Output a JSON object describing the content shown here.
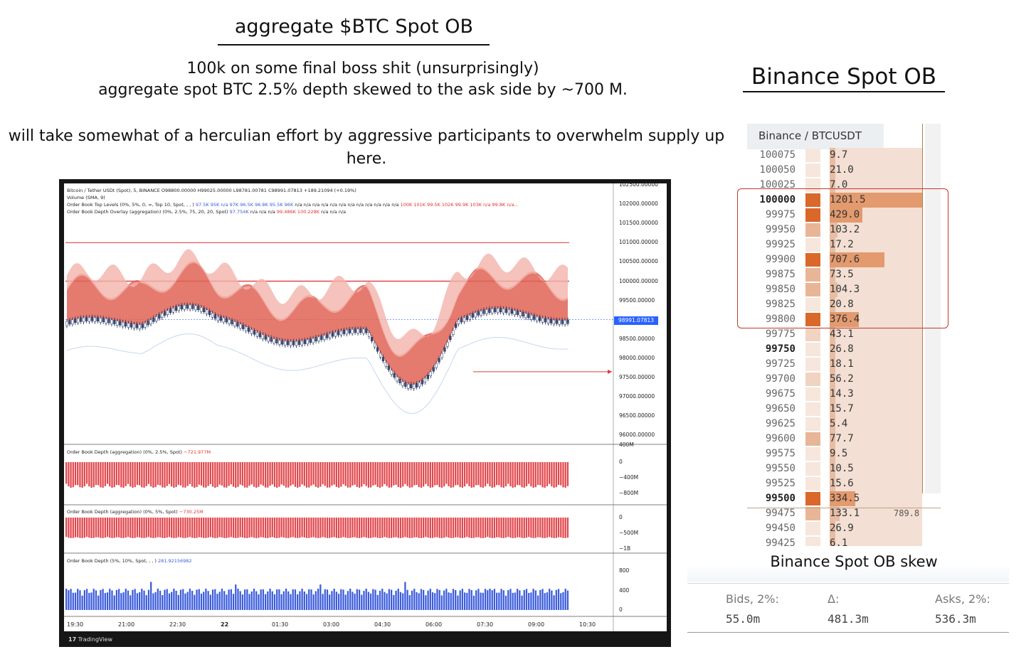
{
  "annotations": {
    "main_title": "aggregate $BTC Spot OB",
    "note_line_1": "100k on some final boss shit (unsurprisingly)",
    "note_line_2": "aggregate spot BTC 2.5% depth skewed to the ask side by ~700 M.",
    "note_line_3": "will take somewhat of a herculian effort by aggressive participants to overwhelm supply up here.",
    "right_title": "Binance Spot OB",
    "skew_title": "Binance Spot OB skew"
  },
  "chart": {
    "legend": {
      "symbol_line": "Bitcoin / Tether USDt (Spot), 5, BINANCE  O98800.00000  H99025.00000  L98781.00781  C98991.07813  +189.21094 (+0.19%)",
      "volume_line": "Volume (SMA, 9)",
      "top_levels_prefix": "Order Book Top Levels (0%, 5%, 0, ∞, Top 10, Spot, , , )",
      "top_levels_blue": "97.5K  95K  n/a  97K  96.5K  96.8K  95.5K  96K",
      "top_levels_na": "n/a  n/a  n/a  n/a  n/a  n/a  n/a  n/a  n/a  n/a  n/a  n/a",
      "top_levels_red": "100K  101K  99.5K  102K  99.9K  103K  n/a  99.8K  n/a...",
      "overlay_prefix": "Order Book Depth Overlay (aggregation) (0%, 2.5%, 75, 20, 20, Spot)",
      "overlay_blue": "97.754K",
      "overlay_na": "n/a  n/a  n/a",
      "overlay_red": "99.486K  100.228K",
      "overlay_tail": "n/a  n/a  n/a"
    },
    "price_axis": [
      "102500.00000",
      "102000.00000",
      "101500.00000",
      "101000.00000",
      "100500.00000",
      "100000.00000",
      "99500.00000",
      "99000.00000",
      "98500.00000",
      "98000.00000",
      "97500.00000",
      "97000.00000",
      "96500.00000",
      "96000.00000"
    ],
    "price_tag": "98991.07813",
    "panel1": {
      "label": "Order Book Depth (aggregation) (0%, 2.5%, Spot)",
      "value": "−721.977M",
      "ticks": [
        "400M",
        "0",
        "−400M",
        "−800M"
      ]
    },
    "panel2": {
      "label": "Order Book Depth (aggregation) (0%, 5%, Spot)",
      "value": "−730.25M",
      "ticks": [
        "0",
        "−500M",
        "−1B"
      ]
    },
    "panel3": {
      "label": "Order Book Depth (5%, 10%, Spot, , , )",
      "value": "281.92156982",
      "ticks": [
        "800",
        "400",
        "0"
      ]
    },
    "time_axis": [
      "19:30",
      "21:00",
      "22:30",
      "22",
      "01:30",
      "03:00",
      "04:30",
      "06:00",
      "07:30",
      "09:00",
      "10:30"
    ],
    "footer": "TradingView",
    "colors": {
      "candle_up": "#1f3a7a",
      "candle_down": "#3d4c80",
      "ask_band": "#e06355",
      "depth_bar": "#e0474c",
      "vol_bar": "#3b5bdb"
    }
  },
  "order_book": {
    "header": "Binance / BTCUSDT",
    "rows": [
      {
        "price": "100075",
        "size": "9.7",
        "bold": false
      },
      {
        "price": "100050",
        "size": "21.0",
        "bold": false
      },
      {
        "price": "100025",
        "size": "7.0",
        "bold": false
      },
      {
        "price": "100000",
        "size": "1201.5",
        "bold": true
      },
      {
        "price": "99975",
        "size": "429.0",
        "bold": false
      },
      {
        "price": "99950",
        "size": "103.2",
        "bold": false
      },
      {
        "price": "99925",
        "size": "17.2",
        "bold": false
      },
      {
        "price": "99900",
        "size": "707.6",
        "bold": false
      },
      {
        "price": "99875",
        "size": "73.5",
        "bold": false
      },
      {
        "price": "99850",
        "size": "104.3",
        "bold": false
      },
      {
        "price": "99825",
        "size": "20.8",
        "bold": false
      },
      {
        "price": "99800",
        "size": "376.4",
        "bold": false
      },
      {
        "price": "99775",
        "size": "43.1",
        "bold": false
      },
      {
        "price": "99750",
        "size": "26.8",
        "bold": true
      },
      {
        "price": "99725",
        "size": "18.1",
        "bold": false
      },
      {
        "price": "99700",
        "size": "56.2",
        "bold": false
      },
      {
        "price": "99675",
        "size": "14.3",
        "bold": false
      },
      {
        "price": "99650",
        "size": "15.7",
        "bold": false
      },
      {
        "price": "99625",
        "size": "5.4",
        "bold": false
      },
      {
        "price": "99600",
        "size": "77.7",
        "bold": false
      },
      {
        "price": "99575",
        "size": "9.5",
        "bold": false
      },
      {
        "price": "99550",
        "size": "10.5",
        "bold": false
      },
      {
        "price": "99525",
        "size": "15.6",
        "bold": false
      },
      {
        "price": "99500",
        "size": "334.5",
        "bold": true
      },
      {
        "price": "99475",
        "size": "133.1",
        "bold": false
      },
      {
        "price": "99450",
        "size": "26.9",
        "bold": false
      },
      {
        "price": "99425",
        "size": "6.1",
        "bold": false
      }
    ],
    "ask_total": "789.8",
    "colors": {
      "strong": "#d9682a",
      "medium": "#e8b597",
      "light": "#f1d3c2",
      "faint": "#f6e6dc"
    }
  },
  "skew": {
    "bids_label": "Bids, 2%:",
    "bids_value": "55.0m",
    "delta_label": "Δ:",
    "delta_value": "481.3m",
    "asks_label": "Asks, 2%:",
    "asks_value": "536.3m"
  }
}
